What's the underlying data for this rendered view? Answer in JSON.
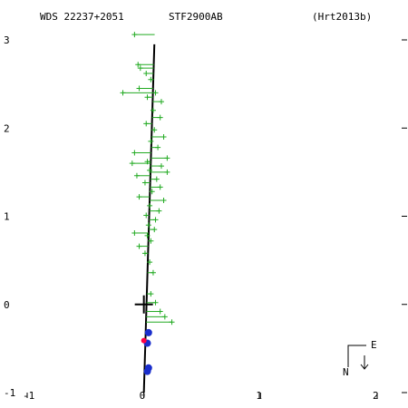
{
  "header": {
    "wds_id": "WDS 22237+2051",
    "discoverer": "STF2900AB",
    "orbit_ref": "(Hrt2013b)"
  },
  "compass": {
    "east_label": "E",
    "north_label": "N"
  },
  "colors": {
    "background": "#ffffff",
    "axes": "#000000",
    "orbit": "#000000",
    "observations": "#22aa22",
    "speckle": "#1a2ecc",
    "highlight": "#ff0044"
  },
  "chart_data": {
    "type": "scatter",
    "x_axis": {
      "range": [
        -1.0,
        2.1
      ],
      "ticks": [
        -1,
        0,
        1,
        2
      ],
      "tick_labels": [
        "-1",
        "0",
        "1",
        "2"
      ]
    },
    "y_axis": {
      "range": [
        -1.0,
        3.2
      ],
      "ticks": [
        -1,
        0,
        1,
        2,
        3
      ],
      "tick_labels": [
        "-1",
        "0",
        "1",
        "2",
        "3"
      ]
    },
    "primary_star": [
      0.0,
      0.0
    ],
    "orbit_track": [
      [
        0.0,
        -1.0
      ],
      [
        0.09,
        2.95
      ]
    ],
    "series": [
      {
        "marker": "plus",
        "values": [
          [
            -0.08,
            3.06
          ],
          [
            -0.05,
            2.72
          ],
          [
            -0.03,
            2.68
          ],
          [
            0.02,
            2.62
          ],
          [
            0.06,
            2.55
          ],
          [
            -0.04,
            2.45
          ],
          [
            0.1,
            2.4
          ],
          [
            0.03,
            2.35
          ],
          [
            0.15,
            2.3
          ],
          [
            -0.18,
            2.4
          ],
          [
            0.08,
            2.2
          ],
          [
            0.14,
            2.12
          ],
          [
            0.02,
            2.05
          ],
          [
            0.09,
            1.98
          ],
          [
            0.17,
            1.9
          ],
          [
            0.06,
            1.85
          ],
          [
            0.12,
            1.78
          ],
          [
            -0.08,
            1.72
          ],
          [
            0.2,
            1.66
          ],
          [
            0.03,
            1.62
          ],
          [
            -0.1,
            1.6
          ],
          [
            0.15,
            1.57
          ],
          [
            0.05,
            1.52
          ],
          [
            0.2,
            1.5
          ],
          [
            -0.06,
            1.46
          ],
          [
            0.11,
            1.42
          ],
          [
            0.01,
            1.38
          ],
          [
            0.14,
            1.33
          ],
          [
            0.07,
            1.28
          ],
          [
            -0.04,
            1.22
          ],
          [
            0.17,
            1.18
          ],
          [
            0.05,
            1.12
          ],
          [
            0.13,
            1.06
          ],
          [
            0.02,
            1.01
          ],
          [
            0.1,
            0.96
          ],
          [
            0.04,
            0.9
          ],
          [
            0.09,
            0.85
          ],
          [
            -0.08,
            0.81
          ],
          [
            0.03,
            0.78
          ],
          [
            0.06,
            0.72
          ],
          [
            -0.04,
            0.66
          ],
          [
            0.01,
            0.58
          ],
          [
            0.05,
            0.48
          ],
          [
            0.08,
            0.36
          ],
          [
            0.06,
            0.12
          ],
          [
            0.1,
            0.02
          ],
          [
            0.14,
            -0.08
          ],
          [
            0.18,
            -0.14
          ],
          [
            0.24,
            -0.2
          ]
        ]
      },
      {
        "marker": "dot",
        "values": [
          [
            0.04,
            -0.32
          ],
          [
            0.03,
            -0.44
          ],
          [
            0.04,
            -0.72
          ],
          [
            0.03,
            -0.76
          ]
        ]
      },
      {
        "marker": "dot",
        "values": [
          [
            0.0,
            -0.41
          ]
        ]
      }
    ]
  }
}
